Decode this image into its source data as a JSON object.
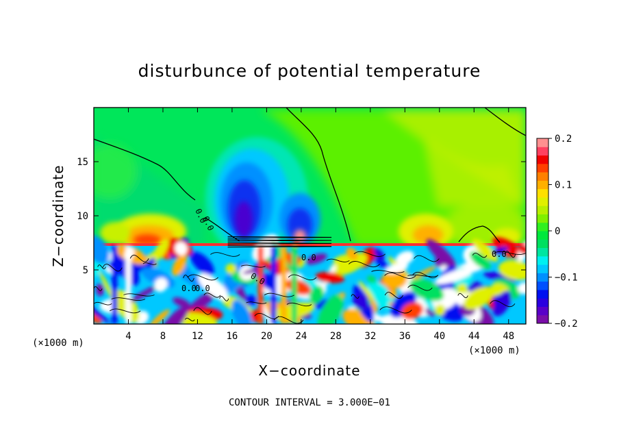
{
  "chart_data": {
    "type": "heatmap",
    "title": "disturbunce of potential temperature",
    "xlabel": "X−coordinate",
    "ylabel": "Z−coordinate",
    "x_unit": "(×1000 m)",
    "xlim": [
      0,
      50
    ],
    "ylim": [
      0,
      20
    ],
    "x_ticks": [
      4,
      8,
      12,
      16,
      20,
      24,
      28,
      32,
      36,
      40,
      44,
      48
    ],
    "y_ticks": [
      5,
      10,
      15
    ],
    "contour_interval_text": "CONTOUR INTERVAL = 3.000E−01",
    "contour_labels": [
      "0.0",
      "0.0",
      "0.0",
      "0.0",
      "0.0",
      "0.0",
      "0.0"
    ],
    "colorbar": {
      "min": -0.2,
      "max": 0.2,
      "tick_values": [
        -0.2,
        -0.1,
        0,
        0.1,
        0.2
      ],
      "tick_labels": [
        "−0.2",
        "−0.1",
        "0",
        "0.1",
        "0.2"
      ],
      "colors": [
        "#7a0ea8",
        "#5a00c8",
        "#2b00e0",
        "#0010f0",
        "#0050ff",
        "#0090ff",
        "#00c8ff",
        "#00f0f0",
        "#00e6a0",
        "#00e060",
        "#00e83c",
        "#30f020",
        "#80f000",
        "#b8f000",
        "#e0f000",
        "#ffe000",
        "#ffb000",
        "#ff8000",
        "#ff4000",
        "#f00000",
        "#ff4060",
        "#ff9090"
      ]
    },
    "field_features": [
      {
        "x": 18,
        "z": 10.2,
        "value": -0.2
      },
      {
        "x": 24.5,
        "z": 9.3,
        "value": -0.16
      },
      {
        "x": 9,
        "z": 8.6,
        "value": 0.08
      },
      {
        "x": 39,
        "z": 8.8,
        "value": 0.06
      },
      {
        "x": 4,
        "z": 9.2,
        "value": 0.04
      },
      {
        "x": 46,
        "z": 9.5,
        "value": 0.03
      }
    ]
  }
}
